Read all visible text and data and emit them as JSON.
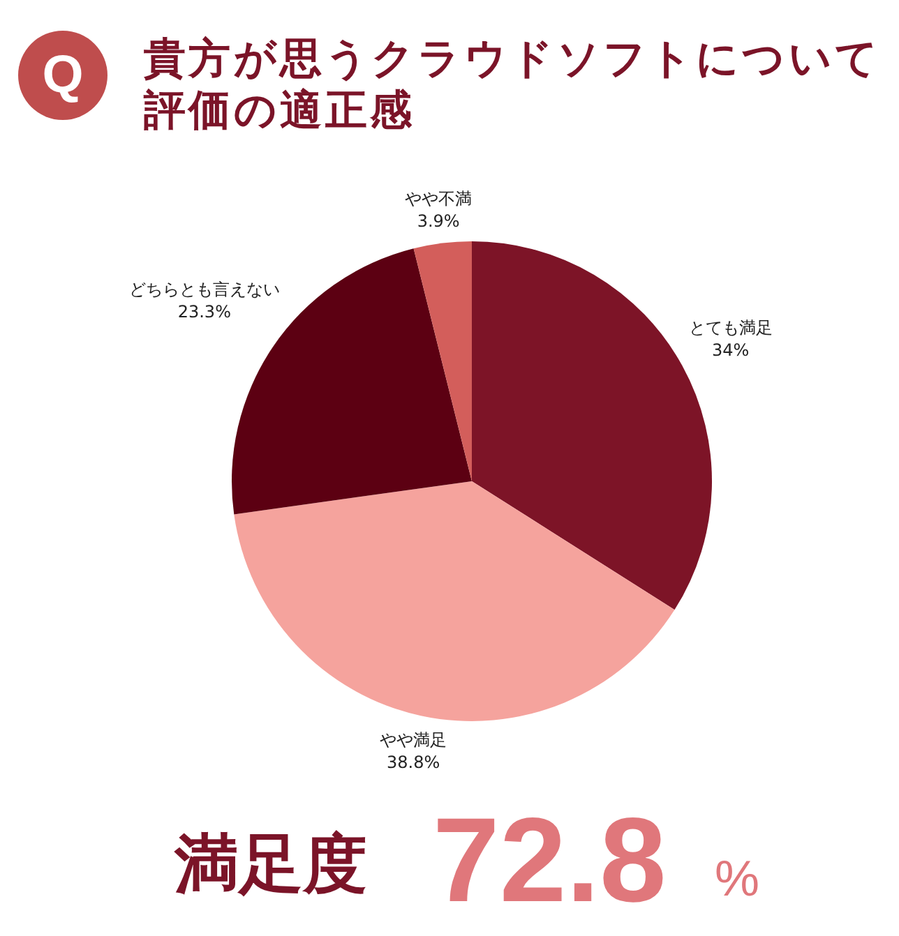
{
  "chart_data": {
    "type": "pie",
    "title": "貴方が思うクラウドソフトについて評価の適正感",
    "categories": [
      "とても満足",
      "やや満足",
      "どちらとも言えない",
      "やや不満"
    ],
    "values": [
      34,
      38.8,
      23.3,
      3.9
    ],
    "value_labels": [
      "34%",
      "38.8%",
      "23.3%",
      "3.9%"
    ],
    "colors": [
      "#7d1427",
      "#f5a39d",
      "#5c0012",
      "#d35e5b"
    ],
    "annotations": [
      "Q",
      "満足度",
      "72.8",
      "%"
    ]
  }
}
